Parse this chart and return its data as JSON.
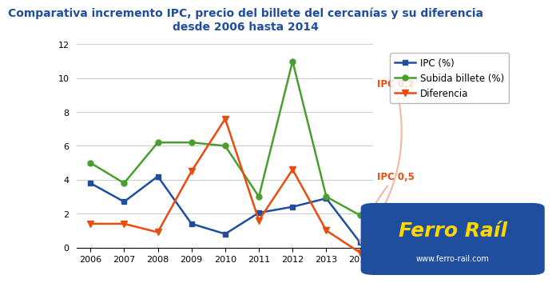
{
  "title": "Comparativa incremento IPC, precio del billete del cercanías y su diferencia\ndesde 2006 hasta 2014",
  "years": [
    2006,
    2007,
    2008,
    2009,
    2010,
    2011,
    2012,
    2013,
    2014
  ],
  "ipc": [
    3.8,
    2.7,
    4.2,
    1.4,
    0.8,
    2.05,
    2.4,
    2.9,
    0.3
  ],
  "subida": [
    5.0,
    3.8,
    6.2,
    6.2,
    6.0,
    3.0,
    11.0,
    3.0,
    1.9
  ],
  "diferencia": [
    1.4,
    1.4,
    0.9,
    4.5,
    7.6,
    1.6,
    4.6,
    1.0,
    -0.3
  ],
  "ipc_color": "#1f4e9e",
  "subida_color": "#4a9e2f",
  "diferencia_color": "#e84c0e",
  "annotation_color": "#e84c0e",
  "arrow_color": "#f4b8a0",
  "title_color": "#1f4e9e",
  "background_color": "#ffffff",
  "ylim": [
    0,
    12
  ],
  "yticks": [
    0,
    2,
    4,
    6,
    8,
    10,
    12
  ],
  "grid_color": "#cccccc",
  "logo_bg": "#1f4e9e",
  "logo_text": "Ferro Raíl",
  "logo_subtext": "www.ferro-rail.com",
  "anno1_text": "IPC 0,2",
  "anno2_text": "IPC 0,5"
}
